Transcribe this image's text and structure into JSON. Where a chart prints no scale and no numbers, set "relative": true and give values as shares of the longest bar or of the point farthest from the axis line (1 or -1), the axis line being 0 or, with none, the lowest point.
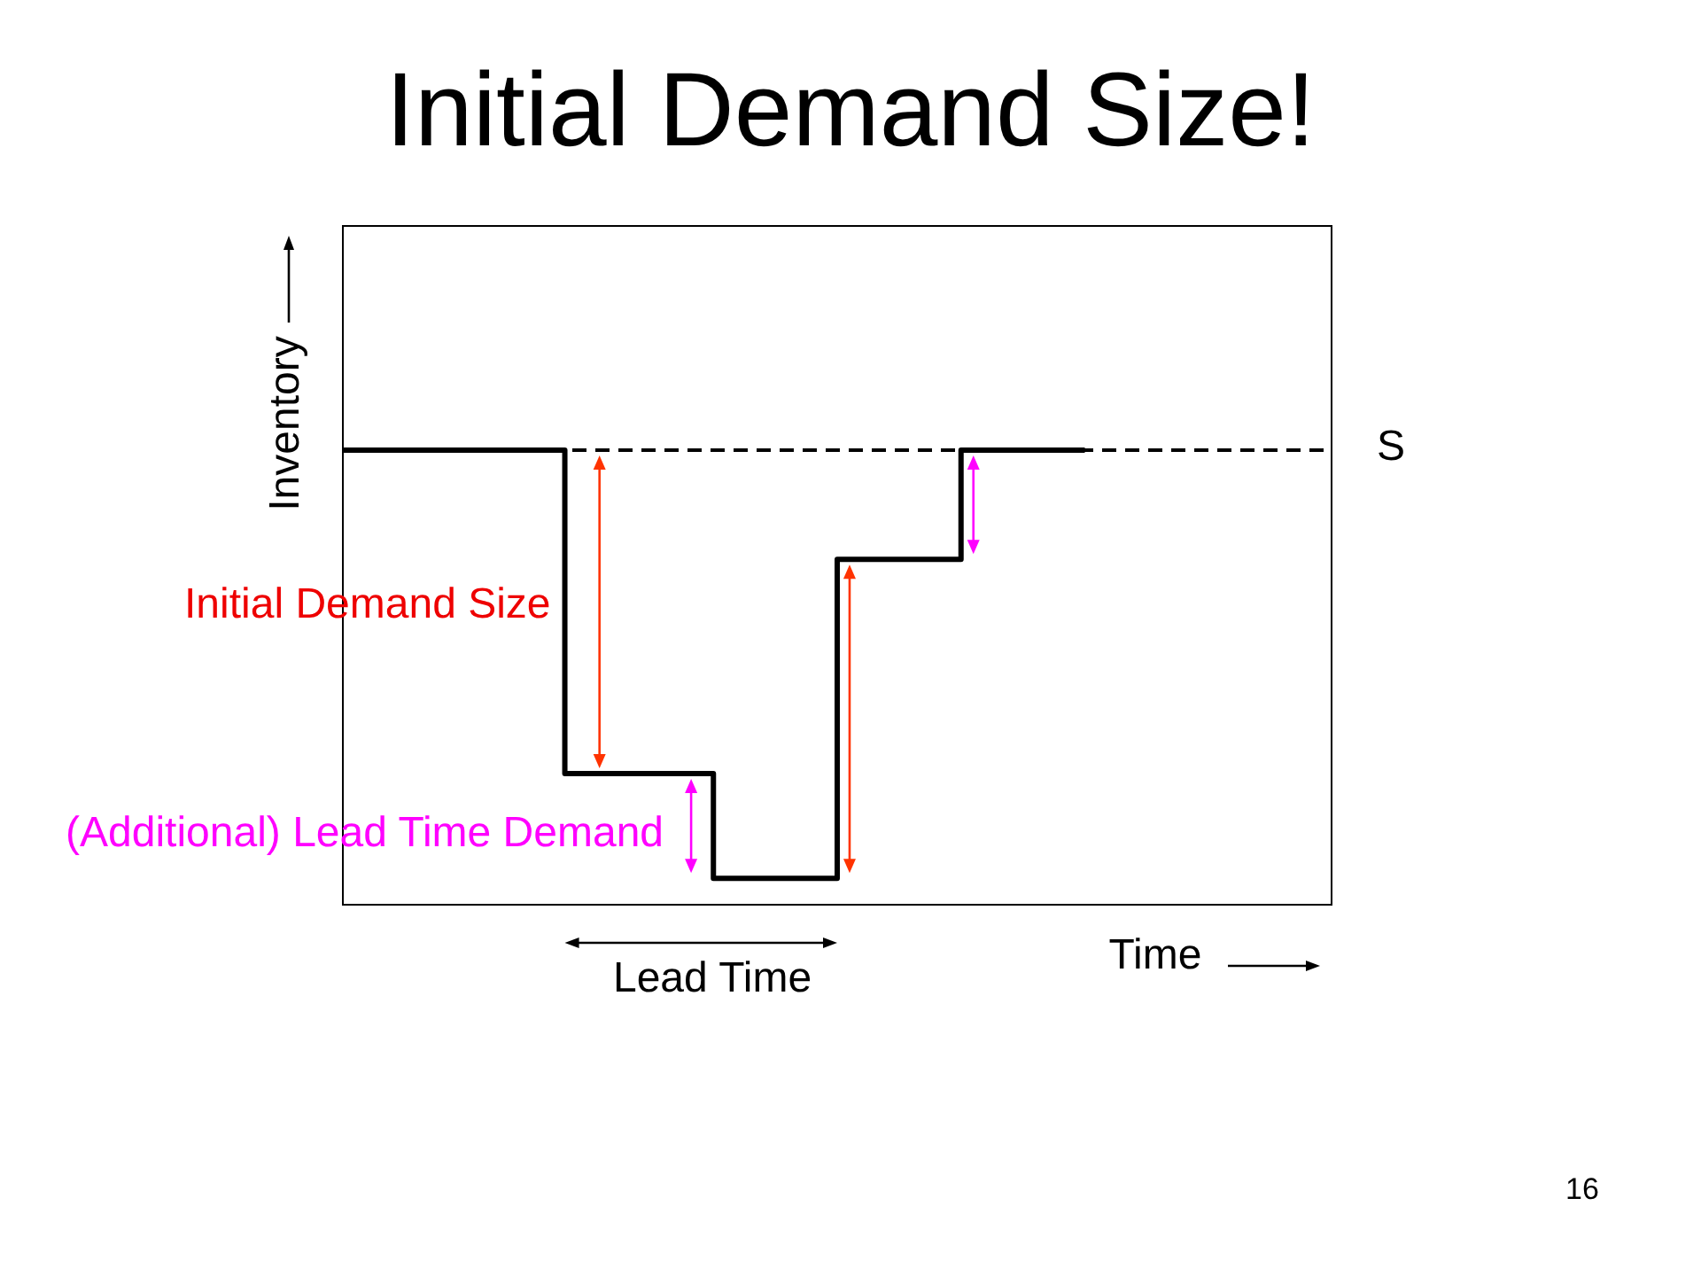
{
  "chart_data": {
    "type": "step",
    "title": "Initial Demand Size!",
    "xlabel": "Time",
    "ylabel": "Inventory",
    "relative": true,
    "categories": [
      null,
      null,
      null,
      null,
      null,
      null,
      null,
      null,
      null,
      null,
      null,
      null,
      null,
      null,
      null,
      null,
      null,
      null,
      null,
      null,
      null,
      null,
      null,
      null,
      null,
      null,
      null,
      null,
      null,
      null,
      null,
      null,
      null,
      null,
      null,
      null,
      null,
      null,
      null,
      null,
      null
    ],
    "series": [
      {
        "color": "#000000",
        "values": [
          1,
          1,
          1,
          1,
          1,
          1,
          1,
          1,
          1,
          0.29,
          0.29,
          0.29,
          0.29,
          0.29,
          0.29,
          0.06,
          0.06,
          0.06,
          0.06,
          0.06,
          0.76,
          0.76,
          0.76,
          0.76,
          0.76,
          1,
          1,
          1,
          1,
          1,
          1,
          null,
          null,
          null,
          null,
          null,
          null,
          null,
          null,
          null,
          null
        ]
      }
    ],
    "ref_lines": [
      {
        "axis": "y",
        "value": 1,
        "label": "S",
        "line_style": "dashed",
        "color": "#000000"
      }
    ],
    "annotations": [
      "Initial Demand Size",
      "(Additional) Lead Time Demand",
      "Lead Time",
      "16"
    ]
  }
}
